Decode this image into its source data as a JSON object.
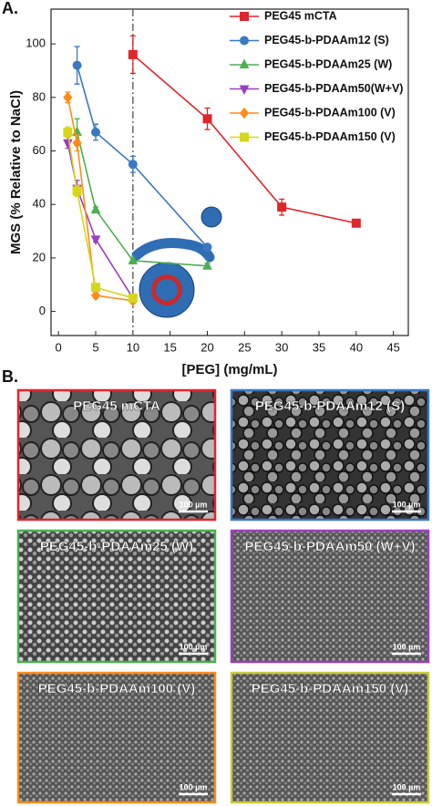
{
  "panel_a_label": "A.",
  "panel_b_label": "B.",
  "chart_data": {
    "type": "line",
    "x_label": "[PEG] (mg/mL)",
    "y_label": "MGS (% Relative to NaCl)",
    "xlim": [
      -1,
      47
    ],
    "ylim": [
      -9,
      113
    ],
    "xticks": [
      0,
      5,
      10,
      15,
      20,
      25,
      30,
      35,
      40,
      45
    ],
    "yticks": [
      0,
      20,
      40,
      60,
      80,
      100
    ],
    "reference_line_x": 10,
    "legend": "upper right",
    "series": [
      {
        "name": "PEG45 mCTA",
        "color": "#e0262b",
        "marker": "square",
        "x": [
          10,
          20,
          30,
          40
        ],
        "values": [
          96,
          72,
          39,
          33
        ],
        "errors": [
          7,
          4,
          3,
          1
        ]
      },
      {
        "name": "PEG45-b-PDAAm12 (S)",
        "color": "#3a78c2",
        "marker": "circle",
        "x": [
          2.5,
          5,
          10,
          20
        ],
        "values": [
          92,
          67,
          55,
          24
        ],
        "errors": [
          7,
          3,
          3,
          1
        ]
      },
      {
        "name": "PEG45-b-PDAAm25 (W)",
        "color": "#4caf50",
        "marker": "triangle-up",
        "x": [
          2.5,
          5,
          10,
          20
        ],
        "values": [
          67,
          38,
          19,
          17
        ],
        "errors": [
          5,
          1,
          1,
          1
        ]
      },
      {
        "name": "PEG45-b-PDAAm50(W+V)",
        "color": "#9b3fc0",
        "marker": "triangle-down",
        "x": [
          1.25,
          2.5,
          5,
          10
        ],
        "values": [
          63,
          46,
          27,
          5
        ],
        "errors": [
          2,
          3,
          1,
          1
        ]
      },
      {
        "name": "PEG45-b-PDAAm100 (V)",
        "color": "#ff8c1a",
        "marker": "diamond",
        "x": [
          1.25,
          2.5,
          5,
          10
        ],
        "values": [
          80,
          63,
          6,
          4
        ],
        "errors": [
          2,
          3,
          1,
          1
        ]
      },
      {
        "name": "PEG45-b-PDAAm150 (V)",
        "color": "#d6d61a",
        "marker": "square",
        "x": [
          1.25,
          2.5,
          5,
          10
        ],
        "values": [
          67,
          45,
          9,
          5
        ],
        "errors": [
          2,
          2,
          1,
          1
        ]
      }
    ]
  },
  "images": [
    {
      "label": "PEG45 mCTA",
      "scale_bar": "100 µm"
    },
    {
      "label": "PEG45-b-PDAAm12 (S)",
      "scale_bar": "100 µm"
    },
    {
      "label": "PEG45-b-PDAAm25 (W)",
      "scale_bar": "100 µm"
    },
    {
      "label": "PEG45-b-PDAAm50 (W+V)",
      "scale_bar": "100 µm"
    },
    {
      "label": "PEG45-b-PDAAm100 (V)",
      "scale_bar": "100 µm"
    },
    {
      "label": "PEG45-b-PDAAm150 (V)",
      "scale_bar": "100 µm"
    }
  ]
}
